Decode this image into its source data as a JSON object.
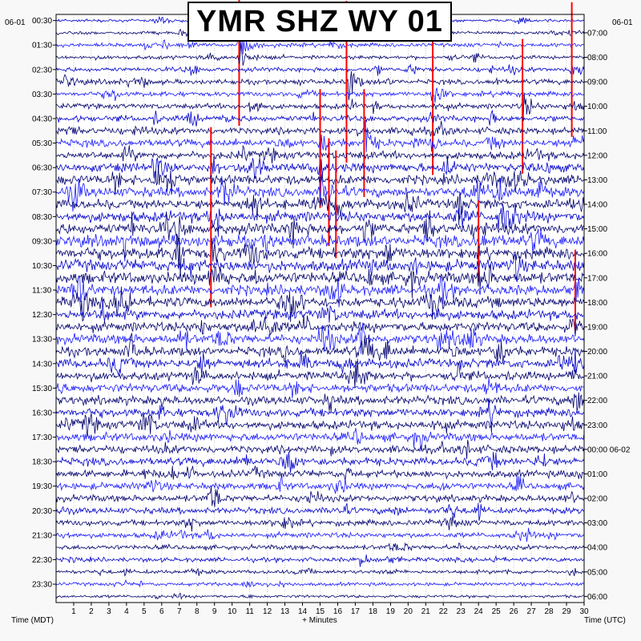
{
  "chart_data": {
    "type": "line",
    "title": "YMR SHZ WY 01",
    "left_date": "06-01",
    "right_date": "06-01",
    "xlabel": "+ Minutes",
    "left_axis_label": "Time (MDT)",
    "right_axis_label": "Time (UTC)",
    "x_ticks": [
      "1",
      "2",
      "3",
      "4",
      "5",
      "6",
      "7",
      "8",
      "9",
      "10",
      "11",
      "12",
      "13",
      "14",
      "15",
      "16",
      "17",
      "18",
      "19",
      "20",
      "21",
      "22",
      "23",
      "24",
      "25",
      "26",
      "27",
      "28",
      "29",
      "30"
    ],
    "xlim": [
      0,
      30
    ],
    "left_times": [
      "00:30",
      "01:30",
      "02:30",
      "03:30",
      "04:30",
      "05:30",
      "06:30",
      "07:30",
      "08:30",
      "09:30",
      "10:30",
      "11:30",
      "12:30",
      "13:30",
      "14:30",
      "15:30",
      "16:30",
      "17:30",
      "18:30",
      "19:30",
      "20:30",
      "21:30",
      "22:30",
      "23:30"
    ],
    "right_times": [
      "07:00",
      "08:00",
      "09:00",
      "10:00",
      "11:00",
      "12:00",
      "13:00",
      "14:00",
      "15:00",
      "16:00",
      "17:00",
      "18:00",
      "19:00",
      "20:00",
      "21:00",
      "22:00",
      "23:00",
      "00:00 06-02",
      "01:00",
      "02:00",
      "03:00",
      "04:00",
      "05:00",
      "06:00"
    ],
    "trace_count": 48,
    "trace_colors": [
      "#00006e",
      "#0000cc",
      "#1a1aff"
    ],
    "clip_color": "#ff0000",
    "grid": true,
    "row_amplitude_profile": [
      0.3,
      0.35,
      0.4,
      0.4,
      0.45,
      0.5,
      0.5,
      0.55,
      0.6,
      0.7,
      0.75,
      0.8,
      0.9,
      1.0,
      1.0,
      1.0,
      1.1,
      1.1,
      1.2,
      1.2,
      1.2,
      1.2,
      1.1,
      1.1,
      1.0,
      1.0,
      1.0,
      0.95,
      0.95,
      0.9,
      0.9,
      0.9,
      0.9,
      0.9,
      0.85,
      0.8,
      0.8,
      0.75,
      0.7,
      0.7,
      0.65,
      0.6,
      0.55,
      0.5,
      0.45,
      0.4,
      0.35,
      0.3
    ],
    "events": [
      {
        "row": 1,
        "minute": 7.5,
        "amp": 4,
        "clip": false
      },
      {
        "row": 2,
        "minute": 10.4,
        "amp": 6,
        "clip": true
      },
      {
        "row": 2,
        "minute": 15.5,
        "amp": 2,
        "clip": false
      },
      {
        "row": 3,
        "minute": 10.4,
        "amp": 5,
        "clip": false
      },
      {
        "row": 5,
        "minute": 0.5,
        "amp": 3,
        "clip": false
      },
      {
        "row": 4,
        "minute": 29.3,
        "amp": 5,
        "clip": true
      },
      {
        "row": 5,
        "minute": 16.5,
        "amp": 6,
        "clip": true
      },
      {
        "row": 6,
        "minute": 21.4,
        "amp": 6,
        "clip": true
      },
      {
        "row": 7,
        "minute": 26.5,
        "amp": 5,
        "clip": true
      },
      {
        "row": 8,
        "minute": 7.5,
        "amp": 4,
        "clip": false
      },
      {
        "row": 10,
        "minute": 15.0,
        "amp": 4,
        "clip": true
      },
      {
        "row": 10,
        "minute": 17.5,
        "amp": 4,
        "clip": true
      },
      {
        "row": 12,
        "minute": 5.5,
        "amp": 4,
        "clip": false
      },
      {
        "row": 12,
        "minute": 8.8,
        "amp": 3,
        "clip": true
      },
      {
        "row": 12,
        "minute": 15.0,
        "amp": 3,
        "clip": true
      },
      {
        "row": 14,
        "minute": 15.5,
        "amp": 4,
        "clip": true
      },
      {
        "row": 15,
        "minute": 15.9,
        "amp": 4,
        "clip": true
      },
      {
        "row": 17,
        "minute": 17.5,
        "amp": 3,
        "clip": false
      },
      {
        "row": 18,
        "minute": 24.0,
        "amp": 3,
        "clip": true
      },
      {
        "row": 19,
        "minute": 8.8,
        "amp": 4,
        "clip": true
      },
      {
        "row": 21,
        "minute": 24.0,
        "amp": 3,
        "clip": false
      },
      {
        "row": 22,
        "minute": 29.5,
        "amp": 3,
        "clip": true
      },
      {
        "row": 28,
        "minute": 29.5,
        "amp": 3,
        "clip": false
      },
      {
        "row": 44,
        "minute": 17.3,
        "amp": 2,
        "clip": false
      }
    ]
  }
}
